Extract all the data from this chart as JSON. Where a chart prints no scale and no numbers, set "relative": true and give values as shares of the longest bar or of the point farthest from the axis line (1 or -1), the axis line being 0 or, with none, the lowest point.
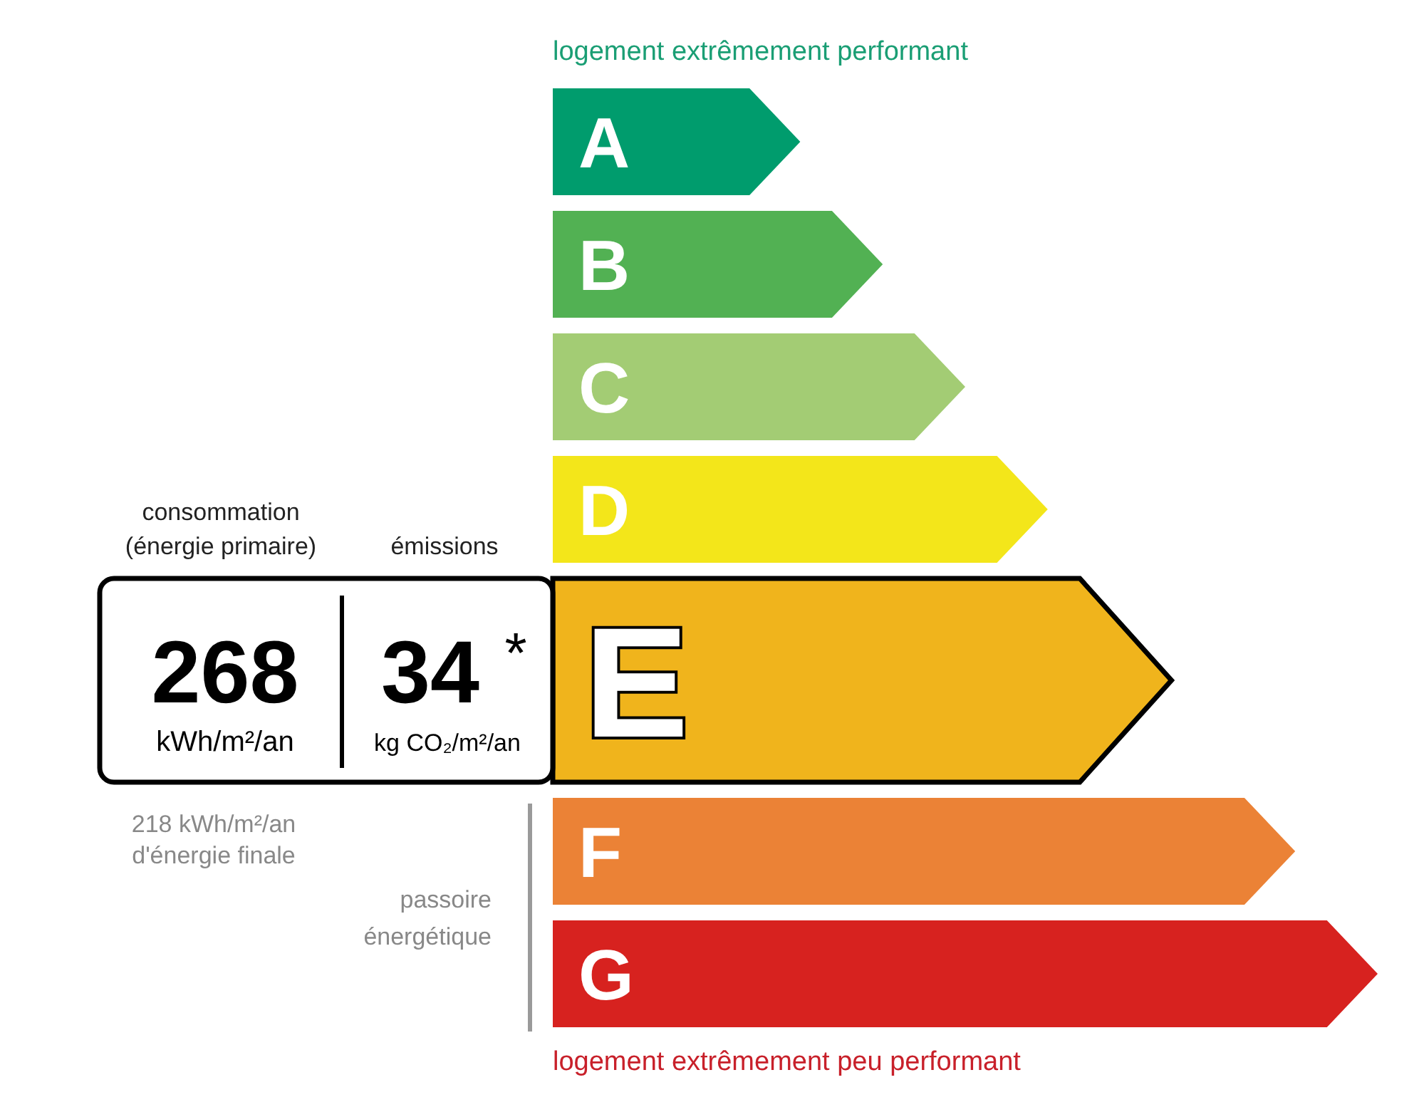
{
  "chart_data": {
    "type": "bar",
    "orientation": "horizontal",
    "relative": true,
    "categories": [
      "A",
      "B",
      "C",
      "D",
      "E",
      "F",
      "G"
    ],
    "values": [
      0.3,
      0.4,
      0.5,
      0.6,
      0.75,
      0.9,
      1.0
    ],
    "colors": [
      "#009c6d",
      "#52b153",
      "#a3cc74",
      "#f3e61a",
      "#f0b41c",
      "#eb8236",
      "#d7221f"
    ],
    "annotations": [
      "logement extrêmement performant",
      "logement extrêmement peu performant",
      "consommation",
      "(énergie primaire)",
      "émissions",
      {
        "text": "268",
        "x": 0,
        "y": "E"
      },
      "kWh/m²/an",
      "34",
      "*",
      "kg CO₂/m²/an",
      "218 kWh/m²/an",
      "d'énergie finale",
      "passoire",
      "énergétique"
    ]
  }
}
